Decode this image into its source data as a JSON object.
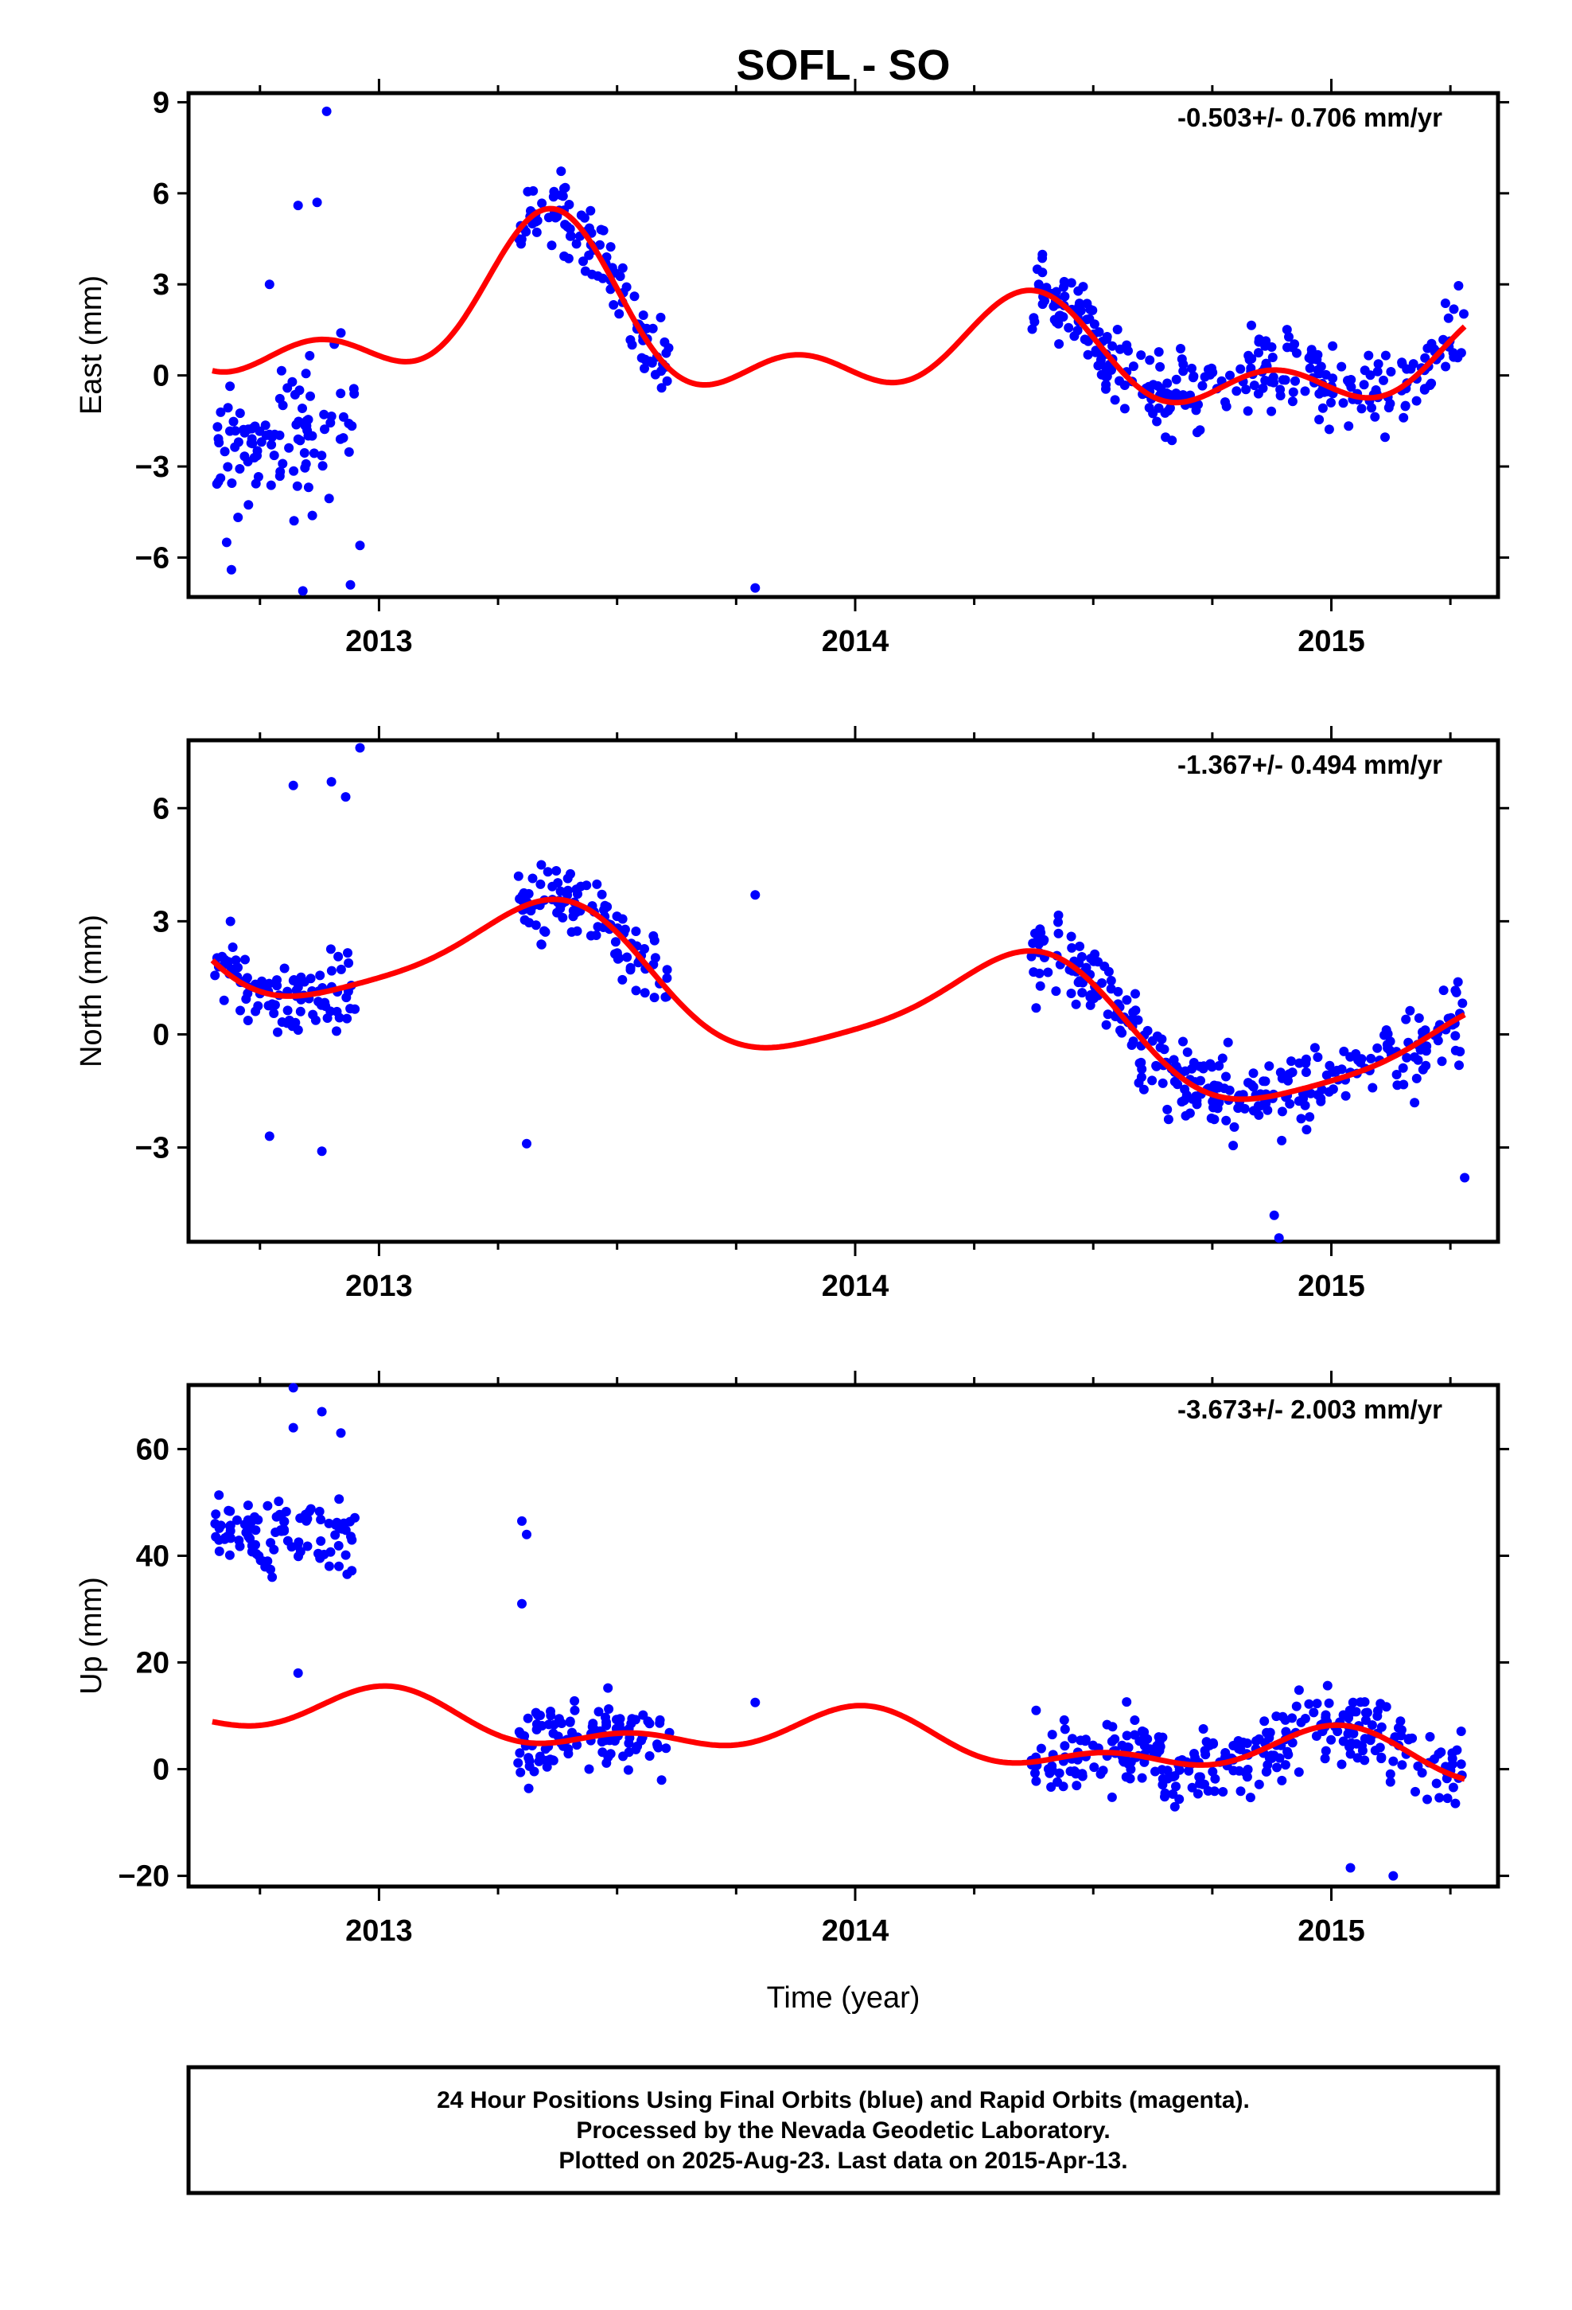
{
  "title": "SOFL - SO",
  "xlabel": "Time (year)",
  "colors": {
    "points": "#0000ff",
    "fit": "#ff0000",
    "frame": "#000000"
  },
  "footer": {
    "line1": "24 Hour Positions Using Final Orbits (blue) and Rapid Orbits (magenta).",
    "line2": "Processed by the Nevada Geodetic Laboratory.",
    "line3": "Plotted on 2025-Aug-23. Last data on 2015-Apr-13."
  },
  "chart_data": [
    {
      "type": "scatter",
      "ylabel": "East (mm)",
      "rate": "-0.503+/- 0.706 mm/yr",
      "xlim": [
        2012.6,
        2015.35
      ],
      "ylim": [
        -7.3,
        9.3
      ],
      "xticks": [
        2013,
        2014,
        2015
      ],
      "yticks": [
        9,
        6,
        3,
        0,
        -3,
        -6
      ],
      "ytick_labels": [
        "9",
        "6",
        "3",
        "0",
        "−3",
        "−6"
      ],
      "segments": [
        [
          2012.65,
          2012.95
        ],
        [
          2013.29,
          2013.61
        ],
        [
          2014.37,
          2015.28
        ]
      ],
      "points": [
        [
          2012.89,
          8.7
        ],
        [
          2012.83,
          5.6
        ],
        [
          2012.87,
          5.7
        ],
        [
          2012.77,
          3.0
        ],
        [
          2012.92,
          1.4
        ],
        [
          2012.69,
          -6.4
        ],
        [
          2012.84,
          -7.1
        ],
        [
          2012.94,
          -6.9
        ],
        [
          2013.79,
          -7.0
        ],
        [
          2012.96,
          -5.6
        ],
        [
          2012.68,
          -5.5
        ]
      ],
      "fit": {
        "offset": 0.8,
        "trend": -0.503,
        "ref": 2014.0,
        "a1": 1.2,
        "p1": 2013.1,
        "a2": 1.0,
        "p2": 2013.25,
        "bump": {
          "amp": 2.2,
          "center": 2013.35,
          "width": 0.18
        }
      }
    },
    {
      "type": "scatter",
      "ylabel": "North (mm)",
      "rate": "-1.367+/- 0.494 mm/yr",
      "xlim": [
        2012.6,
        2015.35
      ],
      "ylim": [
        -5.5,
        7.8
      ],
      "xticks": [
        2013,
        2014,
        2015
      ],
      "yticks": [
        6,
        3,
        0,
        -3
      ],
      "ytick_labels": [
        "6",
        "3",
        "0",
        "−3"
      ],
      "segments": [
        [
          2012.65,
          2012.95
        ],
        [
          2013.29,
          2013.61
        ],
        [
          2014.37,
          2015.28
        ]
      ],
      "points": [
        [
          2012.96,
          7.6
        ],
        [
          2012.82,
          6.6
        ],
        [
          2012.9,
          6.7
        ],
        [
          2012.93,
          6.3
        ],
        [
          2013.79,
          3.7
        ],
        [
          2012.88,
          -3.1
        ],
        [
          2012.77,
          -2.7
        ],
        [
          2013.31,
          -2.9
        ],
        [
          2014.88,
          -4.8
        ],
        [
          2014.89,
          -5.4
        ],
        [
          2015.28,
          -3.8
        ]
      ],
      "fit": {
        "offset": 0.9,
        "trend": -1.367,
        "ref": 2014.0,
        "a1": 1.6,
        "p1": 2013.1,
        "a2": 0.3,
        "p2": 2013.3,
        "bump": {
          "amp": 0,
          "center": 2013.5,
          "width": 0.1
        }
      }
    },
    {
      "type": "scatter",
      "ylabel": "Up (mm)",
      "rate": "-3.673+/- 2.003 mm/yr",
      "xlim": [
        2012.6,
        2015.35
      ],
      "ylim": [
        -22,
        72
      ],
      "xticks": [
        2013,
        2014,
        2015
      ],
      "yticks": [
        60,
        40,
        20,
        0,
        -20
      ],
      "ytick_labels": [
        "60",
        "40",
        "20",
        "0",
        "−20"
      ],
      "segments": [
        [
          2012.65,
          2012.95
        ],
        [
          2013.29,
          2013.61
        ],
        [
          2014.37,
          2015.28
        ]
      ],
      "points": [
        [
          2012.82,
          71.5
        ],
        [
          2012.88,
          67.0
        ],
        [
          2012.82,
          64.0
        ],
        [
          2012.92,
          63.0
        ],
        [
          2013.3,
          46.5
        ],
        [
          2013.31,
          44.0
        ],
        [
          2013.3,
          31.0
        ],
        [
          2012.83,
          18.0
        ],
        [
          2013.79,
          12.5
        ],
        [
          2015.04,
          -18.5
        ],
        [
          2015.13,
          -20.0
        ],
        [
          2014.38,
          11.0
        ]
      ],
      "fit": {
        "offset": 6.0,
        "trend": -3.673,
        "ref": 2014.0,
        "a1": 3.5,
        "p1": 2012.75,
        "a2": 2.5,
        "p2": 2012.9,
        "bump": {
          "amp": 0,
          "center": 2013.5,
          "width": 0.1
        }
      }
    }
  ]
}
